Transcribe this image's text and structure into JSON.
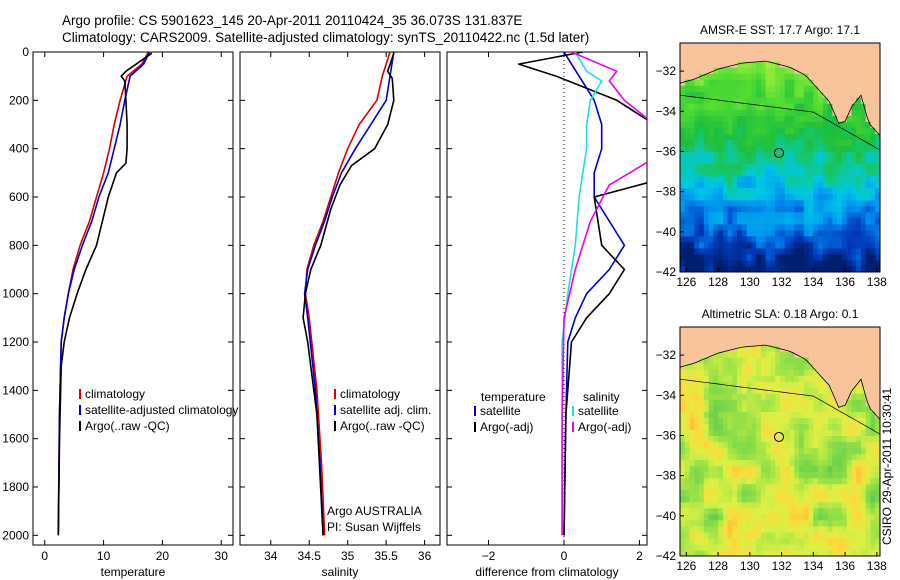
{
  "header": {
    "line1": "Argo profile: CS 5901623_145 20-Apr-2011 20110424_35 36.073S 131.837E",
    "line2": "Climatology: CARS2009. Satellite-adjusted climatology: synTS_20110422.nc (1.5d later)"
  },
  "credit": "CSIRO 29-Apr-2011 10:30:41",
  "colors": {
    "climatology": "#dd0000",
    "satellite": "#0000cc",
    "argo": "#000000",
    "salinity_satellite": "#22dddd",
    "salinity_argo": "#ee00ee",
    "land": "#f7c49b"
  },
  "chart_data": [
    {
      "id": "temperature",
      "type": "line",
      "xlabel": "temperature",
      "xlim": [
        -2,
        32
      ],
      "xticks": [
        0,
        10,
        20,
        30
      ],
      "ylim": [
        2040,
        0
      ],
      "yticks": [
        0,
        200,
        400,
        600,
        800,
        1000,
        1200,
        1400,
        1600,
        1800,
        2000
      ],
      "series": [
        {
          "name": "climatology",
          "color": "#dd0000",
          "x": [
            17.6,
            16.5,
            14.0,
            12.8,
            11.8,
            11.0,
            10.0,
            8.8,
            7.6,
            6.0,
            4.8,
            4.0,
            3.3,
            2.8,
            2.5,
            2.3
          ],
          "y": [
            0,
            50,
            100,
            200,
            300,
            400,
            500,
            600,
            700,
            800,
            900,
            1000,
            1100,
            1200,
            1500,
            2000
          ]
        },
        {
          "name": "satellite-adjusted climatology",
          "color": "#0000cc",
          "x": [
            17.8,
            16.8,
            14.5,
            13.6,
            12.8,
            11.8,
            10.8,
            9.2,
            8.0,
            6.4,
            5.0,
            4.0,
            3.3,
            2.8,
            2.5,
            2.3
          ],
          "y": [
            0,
            50,
            100,
            200,
            300,
            400,
            500,
            600,
            700,
            800,
            900,
            1000,
            1100,
            1200,
            1500,
            2000
          ]
        },
        {
          "name": "Argo(..raw -QC)",
          "color": "#000000",
          "x": [
            18.2,
            13.8,
            13.0,
            13.6,
            13.8,
            14.0,
            14.0,
            13.8,
            12.2,
            10.8,
            9.8,
            8.8,
            7.0,
            5.5,
            4.2,
            3.3,
            2.8,
            2.5,
            2.3
          ],
          "y": [
            5,
            80,
            100,
            120,
            200,
            300,
            400,
            460,
            500,
            600,
            700,
            800,
            900,
            1000,
            1100,
            1200,
            1300,
            1600,
            2000
          ]
        }
      ],
      "legend": [
        "climatology",
        "satellite-adjusted climatology",
        "Argo(..raw -QC)"
      ]
    },
    {
      "id": "salinity",
      "type": "line",
      "xlabel": "salinity",
      "xlim": [
        33.6,
        36.2
      ],
      "xticks": [
        34,
        34.5,
        35,
        35.5,
        36
      ],
      "xticklabels": [
        "34",
        "34.5",
        "35",
        "35.5",
        "36"
      ],
      "ylim": [
        2040,
        0
      ],
      "series": [
        {
          "name": "climatology",
          "color": "#dd0000",
          "x": [
            35.55,
            35.45,
            35.38,
            35.15,
            35.0,
            34.88,
            34.78,
            34.68,
            34.56,
            34.47,
            34.45,
            34.5,
            34.6,
            34.66,
            34.7
          ],
          "y": [
            0,
            100,
            200,
            300,
            400,
            500,
            600,
            700,
            800,
            900,
            1000,
            1100,
            1400,
            1700,
            2000
          ]
        },
        {
          "name": "satellite adj. clim.",
          "color": "#0000cc",
          "x": [
            35.6,
            35.55,
            35.5,
            35.3,
            35.1,
            34.92,
            34.8,
            34.7,
            34.58,
            34.48,
            34.44,
            34.48,
            34.58,
            34.64,
            34.68
          ],
          "y": [
            0,
            100,
            200,
            300,
            400,
            500,
            600,
            700,
            800,
            900,
            1000,
            1100,
            1400,
            1700,
            2000
          ]
        },
        {
          "name": "Argo(..raw -QC)",
          "color": "#000000",
          "x": [
            35.6,
            35.52,
            35.58,
            35.6,
            35.52,
            35.35,
            35.05,
            34.9,
            34.78,
            34.65,
            34.52,
            34.45,
            34.42,
            34.48,
            34.6,
            34.68
          ],
          "y": [
            5,
            80,
            110,
            200,
            300,
            400,
            470,
            550,
            650,
            800,
            900,
            1000,
            1100,
            1200,
            1500,
            2000
          ]
        }
      ],
      "legend": [
        "climatology",
        "satellite adj. clim.",
        "Argo(..raw -QC)"
      ],
      "annotation": [
        "Argo AUSTRALIA",
        "PI: Susan Wijffels"
      ]
    },
    {
      "id": "difference",
      "type": "line",
      "xlabel": "difference from climatology",
      "xlim": [
        -3.1,
        2.2
      ],
      "xticks": [
        -2,
        0,
        2
      ],
      "ylim": [
        2040,
        0
      ],
      "series": [
        {
          "name": "temperature satellite",
          "group": "temperature",
          "color": "#0000cc",
          "x": [
            0.0,
            0.2,
            0.4,
            0.8,
            1.0,
            1.0,
            0.8,
            0.8,
            1.6,
            1.2,
            0.6,
            0.3,
            0.1,
            0.05,
            0.0
          ],
          "y": [
            0,
            50,
            100,
            200,
            300,
            400,
            500,
            600,
            800,
            900,
            1000,
            1100,
            1200,
            1500,
            2000
          ]
        },
        {
          "name": "temperature Argo(-adj)",
          "group": "temperature",
          "color": "#000000",
          "x": [
            0.5,
            -1.2,
            -0.2,
            1.4,
            2.4,
            3.0,
            3.2,
            0.8,
            1.0,
            1.6,
            1.2,
            0.6,
            0.2,
            0.05,
            0.0
          ],
          "y": [
            0,
            50,
            100,
            200,
            300,
            400,
            500,
            600,
            800,
            900,
            1000,
            1100,
            1200,
            1500,
            2000
          ]
        },
        {
          "name": "salinity satellite",
          "group": "salinity",
          "color": "#22dddd",
          "x": [
            0.3,
            0.6,
            1.0,
            0.7,
            0.6,
            0.6,
            0.5,
            0.4,
            0.3,
            0.1,
            -0.05,
            -0.05,
            -0.05
          ],
          "y": [
            0,
            80,
            120,
            200,
            300,
            400,
            500,
            600,
            800,
            1000,
            1200,
            1500,
            2000
          ]
        },
        {
          "name": "salinity Argo(-adj)",
          "group": "salinity",
          "color": "#ee00ee",
          "x": [
            0.2,
            1.4,
            1.2,
            1.6,
            2.4,
            2.6,
            1.2,
            0.7,
            0.3,
            0.0,
            -0.05,
            -0.05
          ],
          "y": [
            0,
            80,
            120,
            200,
            300,
            420,
            550,
            700,
            900,
            1100,
            1500,
            2000
          ]
        }
      ],
      "legend_headers": [
        "temperature",
        "salinity"
      ],
      "legend_labels": [
        "satellite",
        "Argo(-adj)",
        "satellite",
        "Argo(-adj)"
      ]
    },
    {
      "id": "sst_map",
      "type": "heatmap",
      "title": "AMSR-E SST: 17.7 Argo: 17.1",
      "xlim": [
        125.6,
        138.2
      ],
      "ylim": [
        -42,
        -30.6
      ],
      "xticks": [
        126,
        128,
        130,
        132,
        134,
        136,
        138
      ],
      "yticks": [
        -32,
        -34,
        -36,
        -38,
        -40,
        -42
      ],
      "marker": {
        "lon": 131.837,
        "lat": -36.073
      }
    },
    {
      "id": "sla_map",
      "type": "heatmap",
      "title": "Altimetric SLA: 0.18 Argo: 0.1",
      "xlim": [
        125.6,
        138.2
      ],
      "ylim": [
        -42,
        -30.6
      ],
      "xticks": [
        126,
        128,
        130,
        132,
        134,
        136,
        138
      ],
      "yticks": [
        -32,
        -34,
        -36,
        -38,
        -40,
        -42
      ],
      "marker": {
        "lon": 131.837,
        "lat": -36.073
      }
    }
  ]
}
